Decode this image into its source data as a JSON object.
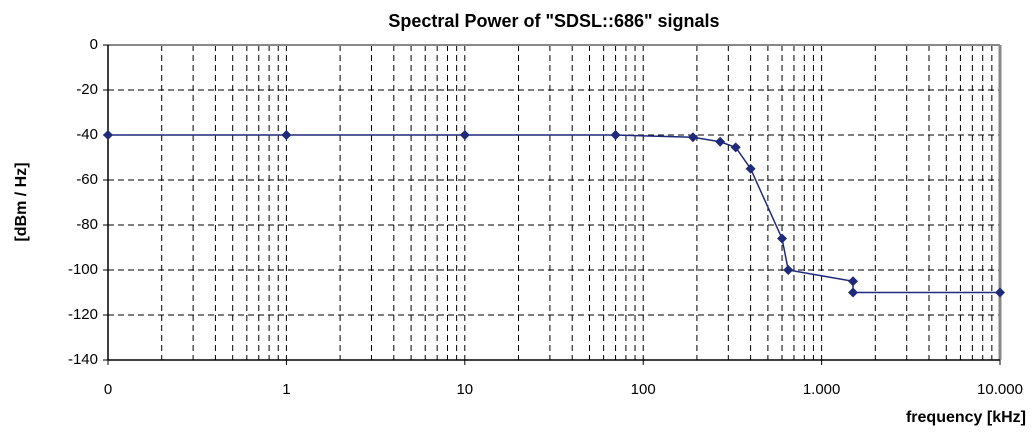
{
  "chart_data": {
    "type": "line",
    "title": "Spectral Power of \"SDSL::686\" signals",
    "x_label": "frequency [kHz]",
    "y_label": "[dBm / Hz]",
    "log_x": true,
    "grid": true,
    "xlim": [
      0.1,
      10000
    ],
    "xticks": [
      {
        "value": 0.1,
        "label": "0"
      },
      1,
      10,
      100,
      {
        "value": 1000,
        "label": "1.000"
      },
      {
        "value": 10000,
        "label": "10.000"
      }
    ],
    "ylim": [
      -140,
      0
    ],
    "yticks": [
      0,
      -20,
      -40,
      -60,
      -80,
      -100,
      -120,
      -140
    ],
    "series": [
      {
        "name": "SDSL::686",
        "color": "#1f2a7a",
        "x": [
          0.1,
          1,
          10,
          70,
          190,
          270,
          330,
          400,
          600,
          650,
          1500,
          1500,
          10000
        ],
        "values": [
          -40,
          -40,
          -40,
          -40,
          -41,
          -43,
          -45.5,
          -55,
          -86,
          -100,
          -105,
          -110,
          -110
        ]
      }
    ]
  }
}
